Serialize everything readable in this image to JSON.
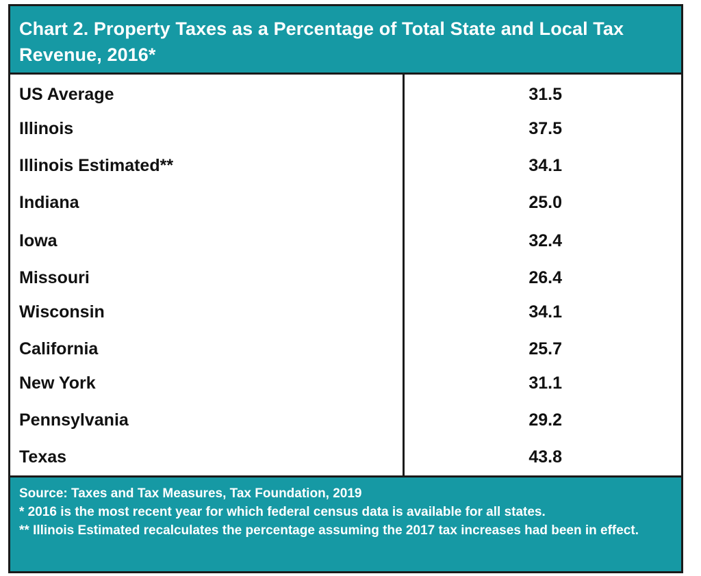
{
  "colors": {
    "accent": "#1699a4",
    "border": "#1a1a1a",
    "text_light": "#ffffff",
    "text_dark": "#111111"
  },
  "chart_data": {
    "type": "table",
    "title": "Chart 2.  Property Taxes as a Percentage of Total State and Local Tax Revenue, 2016*",
    "rows": [
      {
        "label": "US Average",
        "value": "31.5"
      },
      {
        "label": "Illinois",
        "value": "37.5"
      },
      {
        "label": "Illinois Estimated**",
        "value": "34.1"
      },
      {
        "label": "Indiana",
        "value": "25.0"
      },
      {
        "label": "Iowa",
        "value": "32.4"
      },
      {
        "label": "Missouri",
        "value": "26.4"
      },
      {
        "label": "Wisconsin",
        "value": "34.1"
      },
      {
        "label": "California",
        "value": "25.7"
      },
      {
        "label": "New York",
        "value": "31.1"
      },
      {
        "label": "Pennsylvania",
        "value": "29.2"
      },
      {
        "label": "Texas",
        "value": "43.8"
      }
    ],
    "notes": {
      "source": "Source:  Taxes and Tax Measures, Tax Foundation, 2019",
      "note1": "* 2016 is the most recent year for which federal census data is available for all states.",
      "note2": "** Illinois Estimated recalculates the percentage assuming the 2017 tax increases had been in effect."
    }
  }
}
